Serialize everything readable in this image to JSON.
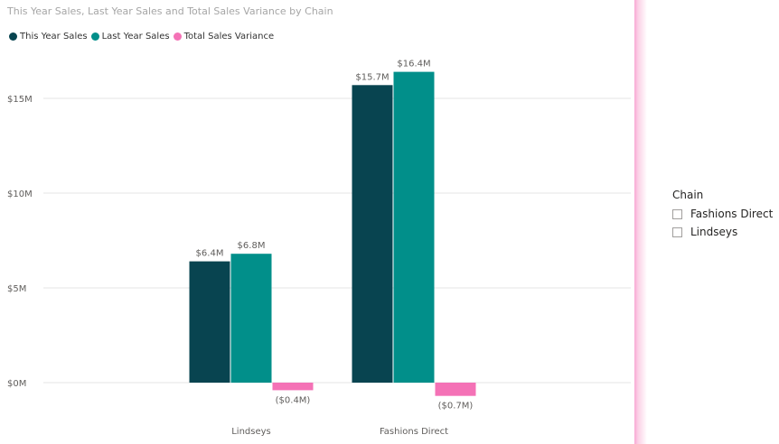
{
  "chart_data": {
    "type": "bar",
    "title": "This Year Sales, Last Year Sales and Total Sales Variance by Chain",
    "categories": [
      "Lindseys",
      "Fashions Direct"
    ],
    "series": [
      {
        "name": "This Year Sales",
        "color": "#084450",
        "values": [
          6.4,
          15.7
        ],
        "labels": [
          "$6.4M",
          "$15.7M"
        ]
      },
      {
        "name": "Last Year Sales",
        "color": "#018f8a",
        "values": [
          6.8,
          16.4
        ],
        "labels": [
          "$6.8M",
          "$16.4M"
        ]
      },
      {
        "name": "Total Sales Variance",
        "color": "#f472b6",
        "values": [
          -0.4,
          -0.7
        ],
        "labels": [
          "($0.4M)",
          "($0.7M)"
        ]
      }
    ],
    "y_ticks": [
      {
        "value": 0,
        "label": "$0M"
      },
      {
        "value": 5,
        "label": "$5M"
      },
      {
        "value": 10,
        "label": "$10M"
      },
      {
        "value": 15,
        "label": "$15M"
      }
    ],
    "xlabel": "",
    "ylabel": "",
    "grid": true,
    "legend_position": "top-left"
  },
  "slicer": {
    "title": "Chain",
    "items": [
      {
        "label": "Fashions Direct",
        "checked": false
      },
      {
        "label": "Lindseys",
        "checked": false
      }
    ]
  },
  "colors": {
    "accent_edge": "#f9a8d4",
    "gridline": "#e6e6e6",
    "axis_text": "#605e5c"
  }
}
